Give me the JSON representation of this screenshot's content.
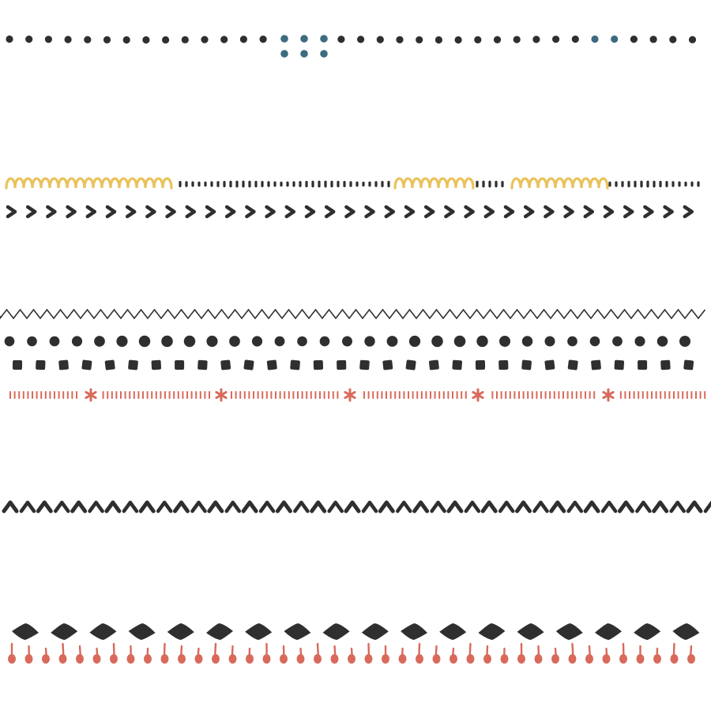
{
  "colors": {
    "background": "#ffffff",
    "dark": "#2f2f2f",
    "blue": "#3d6b80",
    "yellow": "#e9c25a",
    "red": "#d9695a"
  },
  "rows": [
    {
      "motif": "dot-row",
      "accent": "blue"
    },
    {
      "motif": "dash-and-yellow-loop-row",
      "accent": "yellow"
    },
    {
      "motif": "right-chevron-row"
    },
    {
      "motif": "zigzag-line"
    },
    {
      "motif": "circle-row"
    },
    {
      "motif": "square-row"
    },
    {
      "motif": "red-dash-asterisk-row",
      "accent": "red"
    },
    {
      "motif": "up-chevron-row"
    },
    {
      "motif": "diamond-row"
    },
    {
      "motif": "red-drop-row",
      "accent": "red"
    }
  ]
}
